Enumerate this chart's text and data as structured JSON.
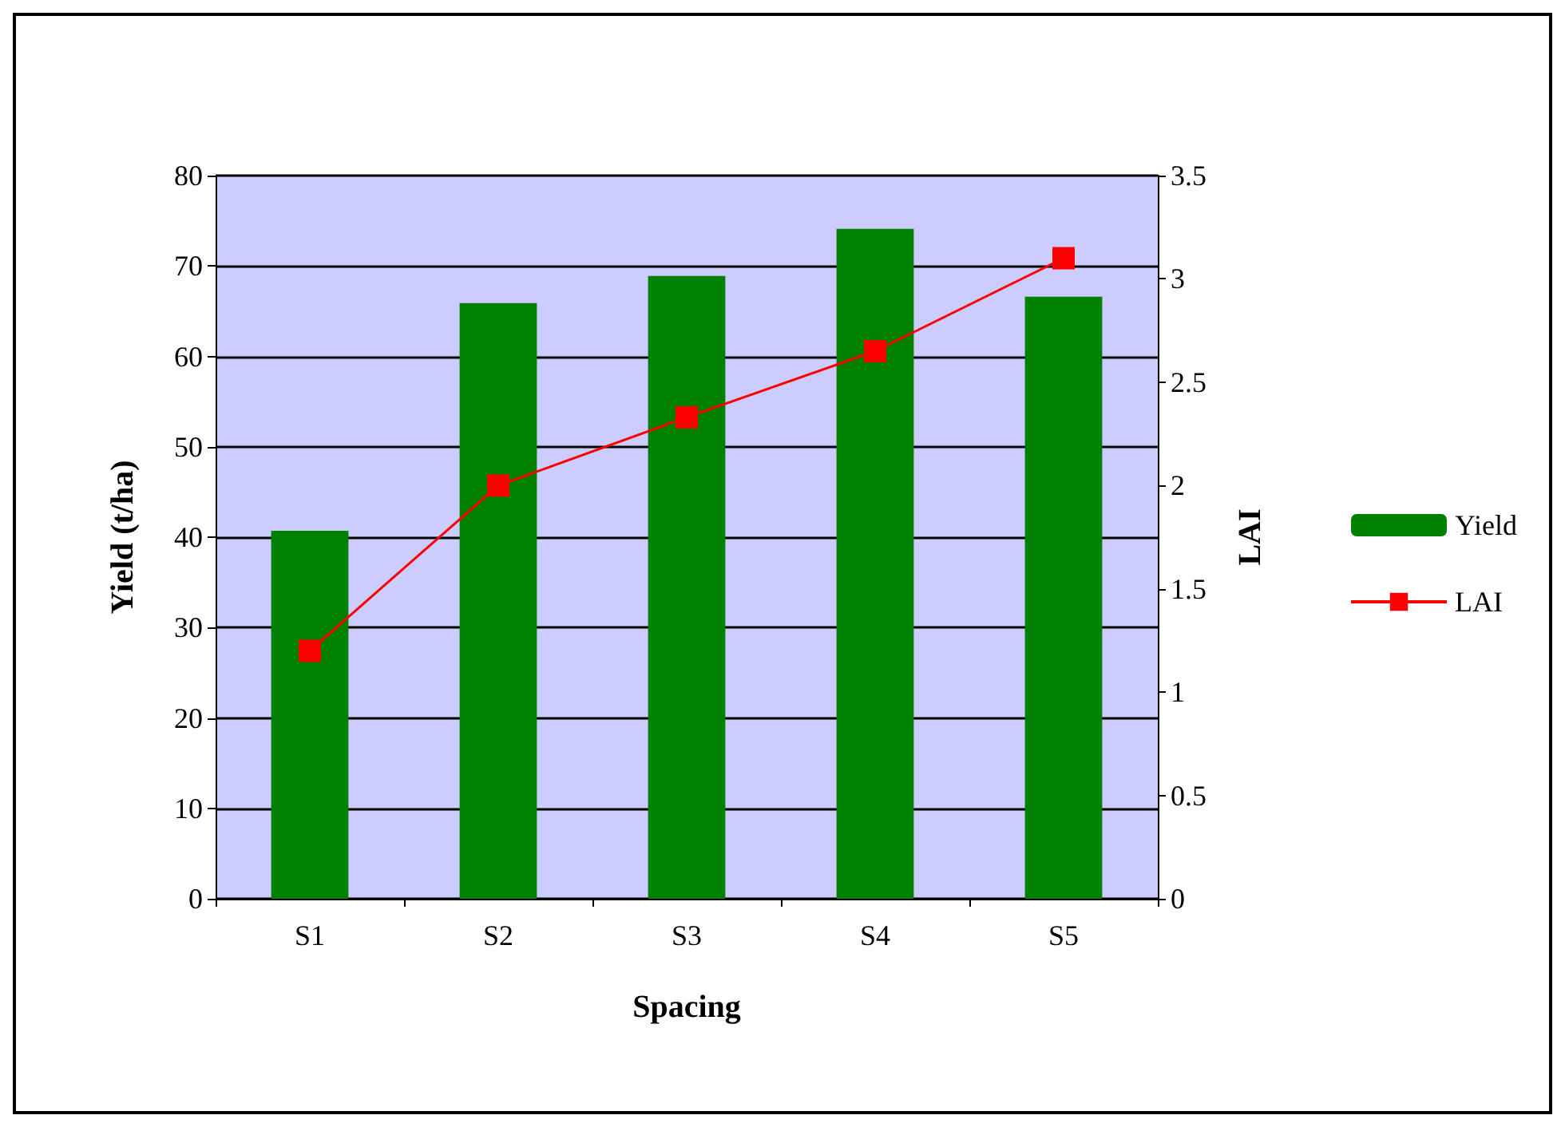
{
  "chart_data": {
    "type": "bar",
    "xlabel": "Spacing",
    "ylabel": "Yield (t/ha)",
    "y2label": "LAI",
    "categories": [
      "S1",
      "S2",
      "S3",
      "S4",
      "S5"
    ],
    "series": [
      {
        "name": "Yield",
        "color": "#008000",
        "values": [
          40.7,
          65.9,
          68.9,
          74.1,
          66.6
        ]
      },
      {
        "name": "LAI",
        "type": "line",
        "axis": "y2",
        "color": "#ff0000",
        "marker": "square",
        "values": [
          1.2,
          2.0,
          2.33,
          2.65,
          3.1
        ]
      }
    ],
    "ylim": [
      0,
      80
    ],
    "yticks": [
      0,
      10,
      20,
      30,
      40,
      50,
      60,
      70,
      80
    ],
    "y2lim": [
      0,
      3.5
    ],
    "y2ticks": [
      0,
      0.5,
      1,
      1.5,
      2,
      2.5,
      3,
      3.5
    ],
    "grid": "y",
    "legend": "right"
  }
}
